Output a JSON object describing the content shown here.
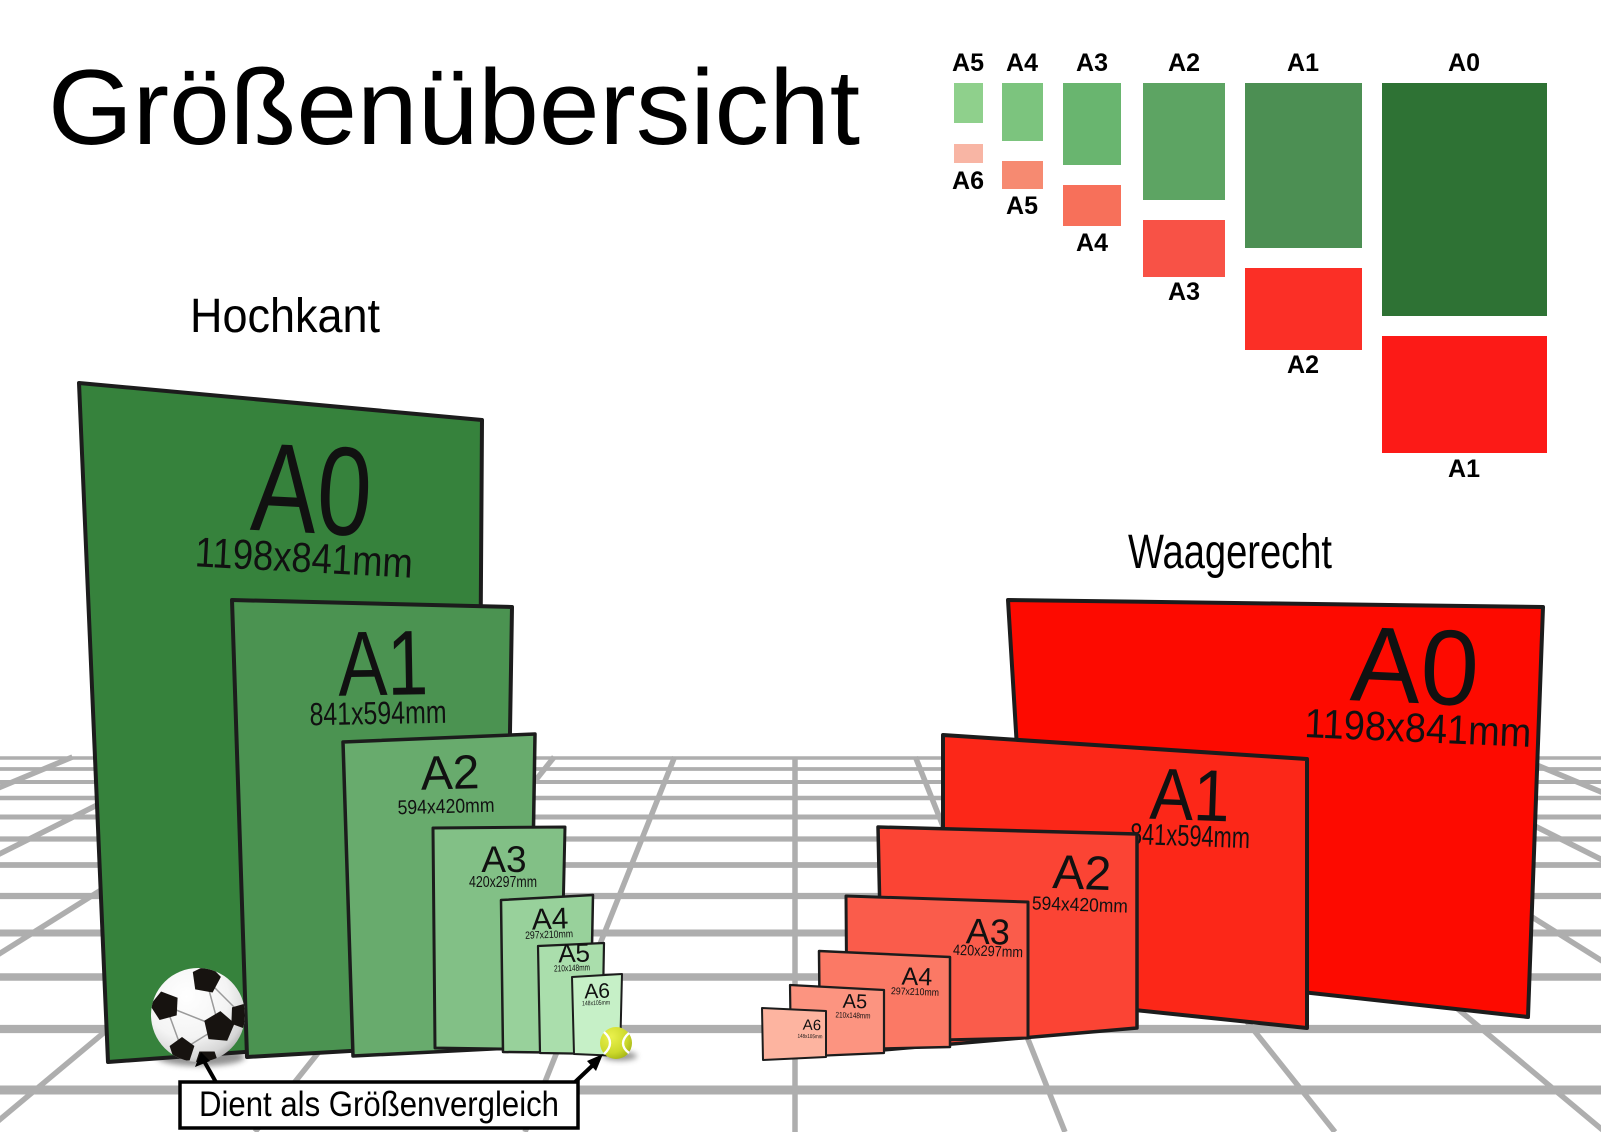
{
  "title": "Größenübersicht",
  "headings": {
    "portrait": "Hochkant",
    "landscape": "Waagerecht"
  },
  "legend": {
    "top_labels": [
      "A5",
      "A4",
      "A3",
      "A2",
      "A1",
      "A0"
    ],
    "bottom_labels": [
      "A6",
      "A5",
      "A4",
      "A3",
      "A2",
      "A1"
    ],
    "portrait_colors": [
      "#8fd08c",
      "#7cc47e",
      "#69b56f",
      "#5da463",
      "#4c8f53",
      "#2e7234"
    ],
    "landscape_colors": [
      "#f8b5a4",
      "#f68a71",
      "#f7705a",
      "#f85246",
      "#fb2f26",
      "#fc1a17"
    ]
  },
  "portrait_panels": [
    {
      "label": "A0",
      "dims": "1198x841mm",
      "color": "#36823c"
    },
    {
      "label": "A1",
      "dims": "841x594mm",
      "color": "#4b9351"
    },
    {
      "label": "A2",
      "dims": "594x420mm",
      "color": "#68ab6d"
    },
    {
      "label": "A3",
      "dims": "420x297mm",
      "color": "#82c086"
    },
    {
      "label": "A4",
      "dims": "297x210mm",
      "color": "#98d19b"
    },
    {
      "label": "A5",
      "dims": "210x148mm",
      "color": "#aadeac"
    },
    {
      "label": "A6",
      "dims": "148x105mm",
      "color": "#c6f0c7"
    }
  ],
  "landscape_panels": [
    {
      "label": "A0",
      "dims": "1198x841mm",
      "color": "#fd0a00"
    },
    {
      "label": "A1",
      "dims": "841x594mm",
      "color": "#fc2718"
    },
    {
      "label": "A2",
      "dims": "594x420mm",
      "color": "#fb4434"
    },
    {
      "label": "A3",
      "dims": "420x297mm",
      "color": "#fa5c4b"
    },
    {
      "label": "A4",
      "dims": "297x210mm",
      "color": "#fb7965"
    },
    {
      "label": "A5",
      "dims": "210x148mm",
      "color": "#fc9480"
    },
    {
      "label": "A6",
      "dims": "148x105mm",
      "color": "#fdb4a0"
    }
  ],
  "caption": "Dient als Größenvergleich",
  "colors": {
    "grid": "#aeaeae",
    "outline": "#1c1c1c",
    "shadow": "#3a3a3a",
    "ball_patch": "#171310",
    "tennis": "#ccd92c"
  }
}
